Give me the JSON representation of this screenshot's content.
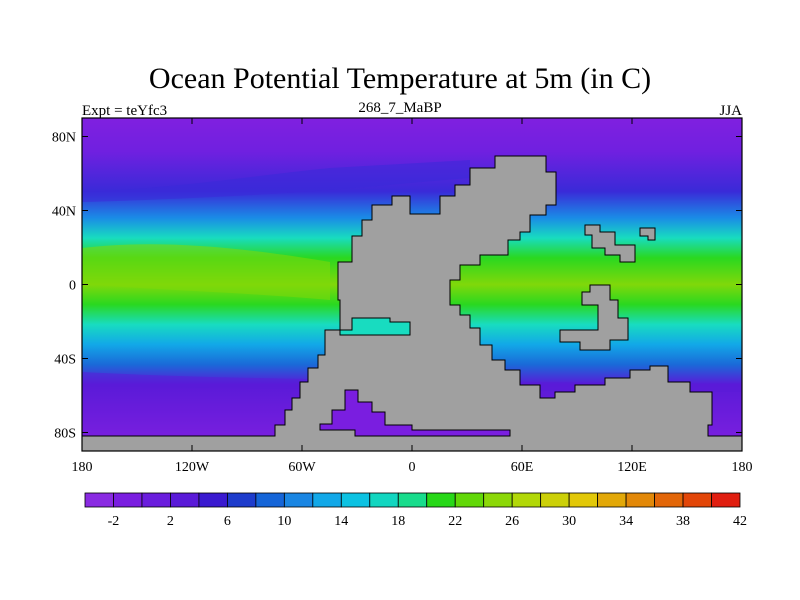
{
  "title": "Ocean Potential Temperature at 5m (in C)",
  "subtitle": {
    "left": "Expt = teYfc3",
    "center": "268_7_MaBP",
    "right": "JJA"
  },
  "axes": {
    "y_ticks": [
      {
        "value": 80,
        "label": "80N"
      },
      {
        "value": 40,
        "label": "40N"
      },
      {
        "value": 0,
        "label": "0"
      },
      {
        "value": -40,
        "label": "40S"
      },
      {
        "value": -80,
        "label": "80S"
      }
    ],
    "x_ticks": [
      {
        "value": -180,
        "label": "180"
      },
      {
        "value": -120,
        "label": "120W"
      },
      {
        "value": -60,
        "label": "60W"
      },
      {
        "value": 0,
        "label": "0"
      },
      {
        "value": 60,
        "label": "60E"
      },
      {
        "value": 120,
        "label": "120E"
      },
      {
        "value": 180,
        "label": "180"
      }
    ],
    "lon_range": [
      -180,
      180
    ],
    "lat_range": [
      -90,
      90
    ]
  },
  "colorbar": {
    "colors": [
      "#8a2be2",
      "#7a1ee0",
      "#6a1ddd",
      "#5a1ad8",
      "#3a1ad0",
      "#1e3ccc",
      "#1565d8",
      "#1a86e3",
      "#12a8e8",
      "#0cc2e2",
      "#12d6c0",
      "#18dc8c",
      "#28d818",
      "#62d808",
      "#8cd808",
      "#b2d808",
      "#ccd008",
      "#e2c808",
      "#e2a808",
      "#e28808",
      "#e26608",
      "#e24608",
      "#e01e10"
    ],
    "labels": [
      "-2",
      "2",
      "6",
      "10",
      "14",
      "18",
      "22",
      "26",
      "30",
      "34",
      "38",
      "42"
    ]
  },
  "legend_colors": {
    "land": "#a0a0a0",
    "polar": "#8020e0",
    "cold": "#2a2ad8",
    "cool": "#1a8ce6",
    "mild": "#18dcc0",
    "warm": "#2ad820",
    "hot": "#84d80a"
  }
}
